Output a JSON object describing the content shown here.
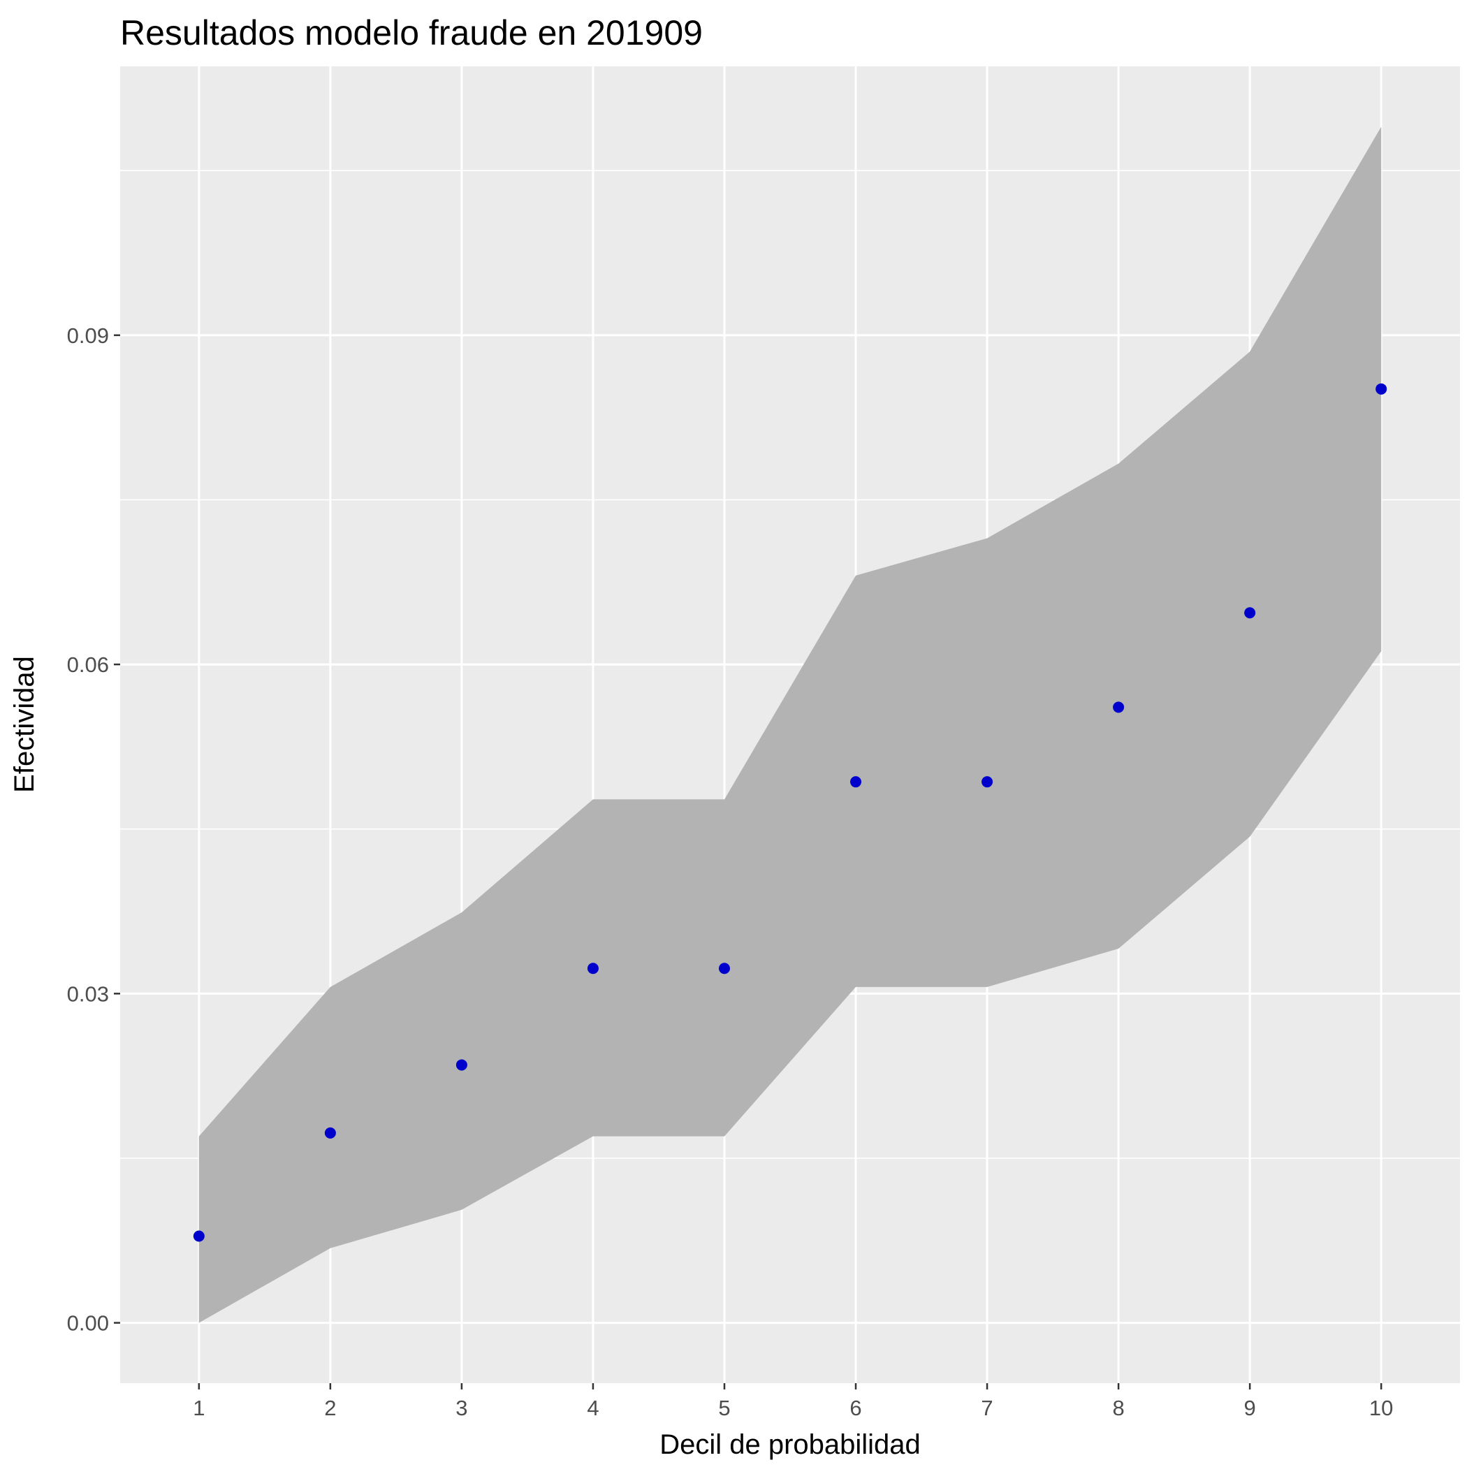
{
  "chart_data": {
    "type": "scatter",
    "title": "Resultados modelo fraude en 201909",
    "xlabel": "Decil de probabilidad",
    "ylabel": "Efectividad",
    "x": [
      1,
      2,
      3,
      4,
      5,
      6,
      7,
      8,
      9,
      10
    ],
    "series": [
      {
        "values": [
          0.0079,
          0.0173,
          0.0235,
          0.0323,
          0.0323,
          0.0493,
          0.0493,
          0.0561,
          0.0647,
          0.0851
        ]
      }
    ],
    "band": {
      "lower": [
        0.0,
        0.0068,
        0.0103,
        0.017,
        0.017,
        0.0306,
        0.0306,
        0.0341,
        0.0443,
        0.0612
      ],
      "upper": [
        0.017,
        0.0306,
        0.0374,
        0.0477,
        0.0477,
        0.0681,
        0.0715,
        0.0783,
        0.0885,
        0.109
      ]
    },
    "x_ticks": [
      "1",
      "2",
      "3",
      "4",
      "5",
      "6",
      "7",
      "8",
      "9",
      "10"
    ],
    "y_ticks": [
      "0.00",
      "0.03",
      "0.06",
      "0.09"
    ],
    "xlim": [
      0.4,
      10.6
    ],
    "ylim": [
      -0.0055,
      0.1145
    ],
    "grid": true,
    "colors": {
      "panel": "#ebebeb",
      "grid": "#ffffff",
      "band": "#b3b3b3",
      "point": "#0000cd"
    }
  }
}
